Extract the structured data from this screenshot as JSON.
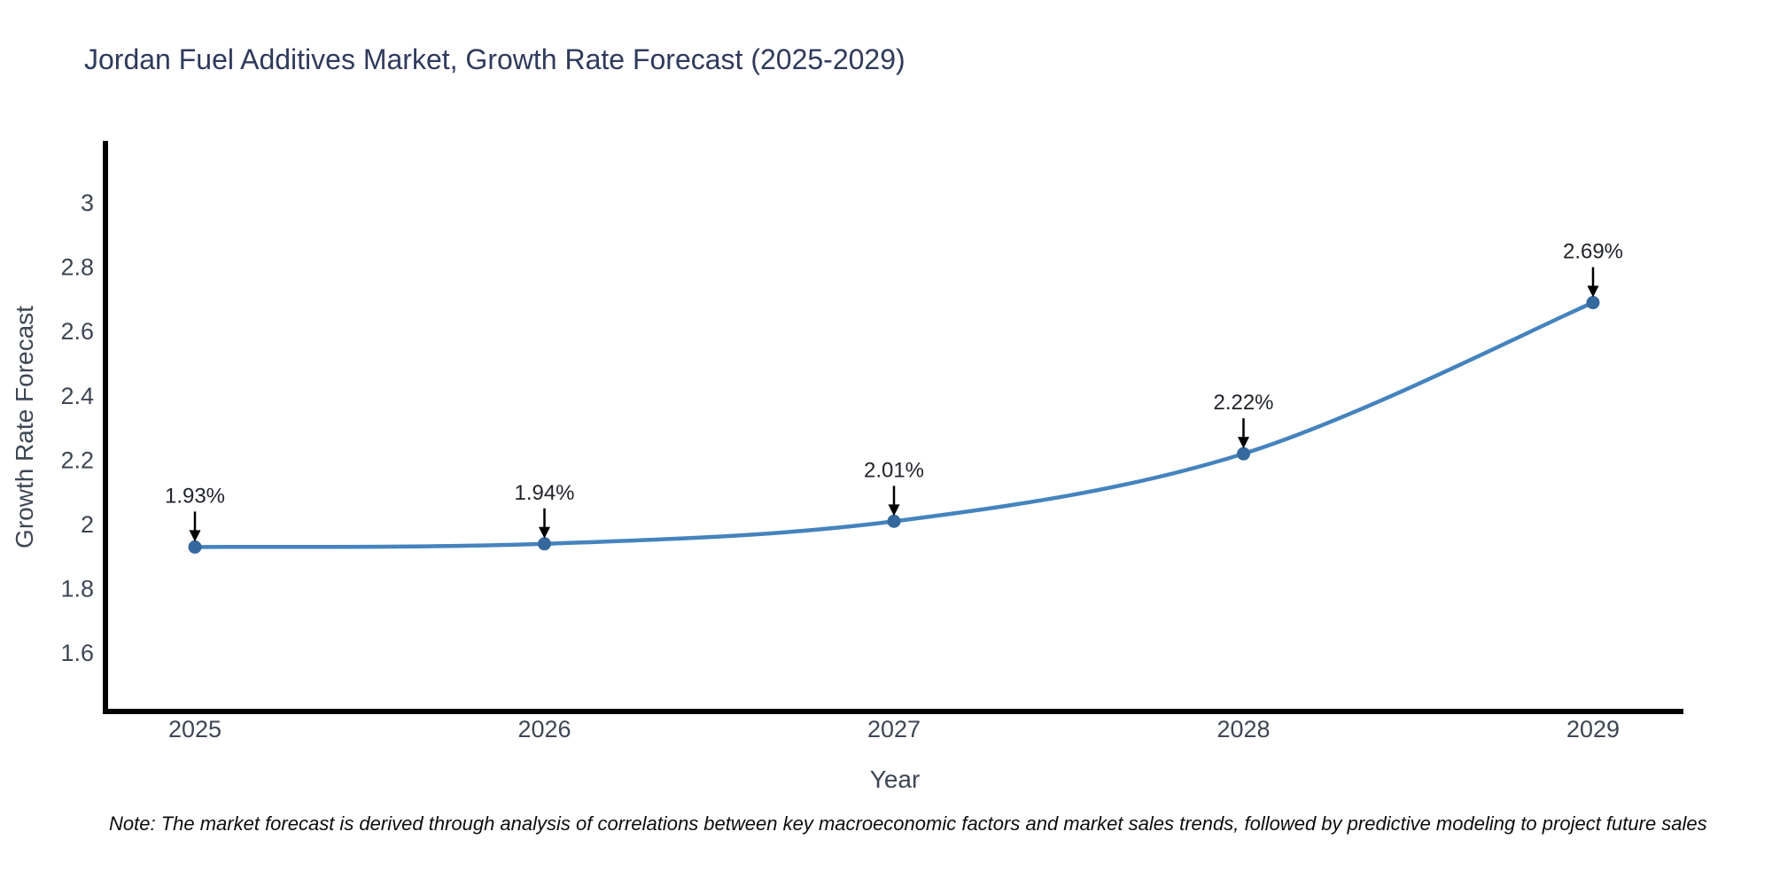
{
  "chart_data": {
    "type": "line",
    "title": "Jordan Fuel Additives Market, Growth Rate Forecast (2025-2029)",
    "xlabel": "Year",
    "ylabel": "Growth Rate Forecast",
    "categories": [
      "2025",
      "2026",
      "2027",
      "2028",
      "2029"
    ],
    "series": [
      {
        "name": "Growth Rate Forecast",
        "values": [
          1.93,
          1.94,
          2.01,
          2.22,
          2.69
        ]
      }
    ],
    "point_labels": [
      "1.93%",
      "1.94%",
      "2.01%",
      "2.22%",
      "2.69%"
    ],
    "y_ticks": [
      "3",
      "2.8",
      "2.6",
      "2.4",
      "2.2",
      "2",
      "1.8",
      "1.6"
    ],
    "y_tick_values": [
      3,
      2.8,
      2.6,
      2.4,
      2.2,
      2,
      1.8,
      1.6
    ],
    "ylim": [
      1.42,
      3.18
    ],
    "xlim": [
      2024.74,
      2029.26
    ],
    "grid": false,
    "legend": "none",
    "annotation_style": "percent labels above points with black down arrows",
    "colors": {
      "line": "#4583bd",
      "marker": "#35699e",
      "axis": "#000000",
      "arrow": "#000000",
      "tick_text": "#3d4653",
      "title_text": "#2f3a5c",
      "annotation_text": "#1f2329",
      "background": "#ffffff"
    }
  },
  "footnote": "Note: The market forecast is derived through analysis of correlations between key macroeconomic factors and market sales trends, followed by predictive modeling to project future sales"
}
